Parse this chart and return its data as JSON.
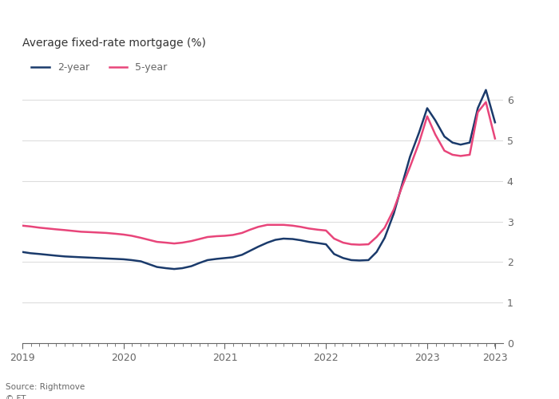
{
  "title": "Average fixed-rate mortgage (%)",
  "source": "Source: Rightmove",
  "credit": "© FT",
  "ylim": [
    0,
    6.5
  ],
  "yticks": [
    0,
    1,
    2,
    3,
    4,
    5,
    6
  ],
  "xlim": [
    2019.0,
    2023.75
  ],
  "background_color": "#ffffff",
  "plot_bg_color": "#ffffff",
  "line_color_2year": "#1a3a6b",
  "line_color_5year": "#e8457a",
  "title_color": "#333333",
  "tick_color": "#666666",
  "grid_color": "#dddddd",
  "legend_2year": "2-year",
  "legend_5year": "5-year",
  "two_year_x": [
    2019.0,
    2019.08,
    2019.17,
    2019.25,
    2019.33,
    2019.42,
    2019.5,
    2019.58,
    2019.67,
    2019.75,
    2019.83,
    2019.92,
    2020.0,
    2020.08,
    2020.17,
    2020.25,
    2020.33,
    2020.42,
    2020.5,
    2020.58,
    2020.67,
    2020.75,
    2020.83,
    2020.92,
    2021.0,
    2021.08,
    2021.17,
    2021.25,
    2021.33,
    2021.42,
    2021.5,
    2021.58,
    2021.67,
    2021.75,
    2021.83,
    2021.92,
    2022.0,
    2022.08,
    2022.17,
    2022.25,
    2022.33,
    2022.42,
    2022.5,
    2022.58,
    2022.67,
    2022.75,
    2022.83,
    2022.92,
    2023.0,
    2023.08,
    2023.17,
    2023.25,
    2023.33,
    2023.42,
    2023.5,
    2023.58,
    2023.67
  ],
  "two_year_y": [
    2.25,
    2.22,
    2.2,
    2.18,
    2.16,
    2.14,
    2.13,
    2.12,
    2.11,
    2.1,
    2.09,
    2.08,
    2.07,
    2.05,
    2.02,
    1.95,
    1.88,
    1.85,
    1.83,
    1.85,
    1.9,
    1.98,
    2.05,
    2.08,
    2.1,
    2.12,
    2.18,
    2.28,
    2.38,
    2.48,
    2.55,
    2.58,
    2.57,
    2.54,
    2.5,
    2.47,
    2.44,
    2.2,
    2.1,
    2.05,
    2.04,
    2.05,
    2.25,
    2.6,
    3.2,
    3.9,
    4.6,
    5.2,
    5.8,
    5.5,
    5.1,
    4.95,
    4.9,
    4.95,
    5.8,
    6.25,
    5.45
  ],
  "five_year_x": [
    2019.0,
    2019.08,
    2019.17,
    2019.25,
    2019.33,
    2019.42,
    2019.5,
    2019.58,
    2019.67,
    2019.75,
    2019.83,
    2019.92,
    2020.0,
    2020.08,
    2020.17,
    2020.25,
    2020.33,
    2020.42,
    2020.5,
    2020.58,
    2020.67,
    2020.75,
    2020.83,
    2020.92,
    2021.0,
    2021.08,
    2021.17,
    2021.25,
    2021.33,
    2021.42,
    2021.5,
    2021.58,
    2021.67,
    2021.75,
    2021.83,
    2021.92,
    2022.0,
    2022.08,
    2022.17,
    2022.25,
    2022.33,
    2022.42,
    2022.5,
    2022.58,
    2022.67,
    2022.75,
    2022.83,
    2022.92,
    2023.0,
    2023.08,
    2023.17,
    2023.25,
    2023.33,
    2023.42,
    2023.5,
    2023.58,
    2023.67
  ],
  "five_year_y": [
    2.9,
    2.88,
    2.85,
    2.83,
    2.81,
    2.79,
    2.77,
    2.75,
    2.74,
    2.73,
    2.72,
    2.7,
    2.68,
    2.65,
    2.6,
    2.55,
    2.5,
    2.48,
    2.46,
    2.48,
    2.52,
    2.57,
    2.62,
    2.64,
    2.65,
    2.67,
    2.72,
    2.8,
    2.87,
    2.92,
    2.92,
    2.92,
    2.9,
    2.87,
    2.83,
    2.8,
    2.78,
    2.58,
    2.48,
    2.44,
    2.43,
    2.44,
    2.62,
    2.85,
    3.3,
    3.85,
    4.35,
    4.95,
    5.6,
    5.15,
    4.75,
    4.65,
    4.62,
    4.65,
    5.7,
    5.95,
    5.05
  ]
}
